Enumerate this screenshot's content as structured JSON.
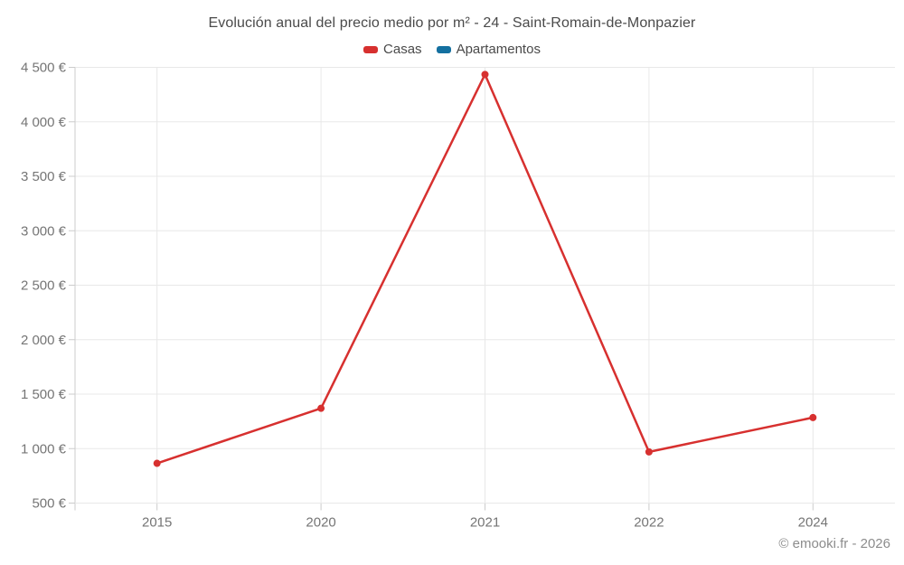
{
  "chart_data": {
    "type": "line",
    "title": "Evolución anual del precio medio por m² - 24 - Saint-Romain-de-Monpazier",
    "categories": [
      "2015",
      "2020",
      "2021",
      "2022",
      "2024"
    ],
    "series": [
      {
        "name": "Casas",
        "color": "#d7302f",
        "values": [
          865,
          1370,
          4435,
          970,
          1285
        ]
      },
      {
        "name": "Apartamentos",
        "color": "#1470a0",
        "values": []
      }
    ],
    "ylabel": "",
    "xlabel": "",
    "ylim": [
      500,
      4500
    ],
    "y_tick_step": 500,
    "y_tick_labels": [
      "500 €",
      "1 000 €",
      "1 500 €",
      "2 000 €",
      "2 500 €",
      "3 000 €",
      "3 500 €",
      "4 000 €",
      "4 500 €"
    ],
    "grid": true,
    "legend_position": "top",
    "unit": "€",
    "footer": "© emooki.fr - 2026"
  },
  "colors": {
    "grid": "#e8e8e8",
    "axis": "#cccccc",
    "tick_label": "#757575",
    "title_text": "#4a4a4a",
    "footer_text": "#8c8c8c"
  }
}
